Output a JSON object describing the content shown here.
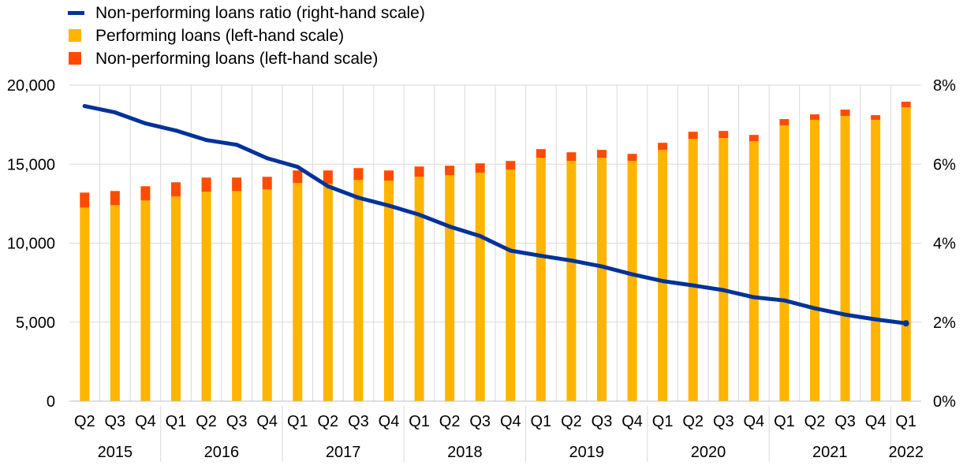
{
  "chart_data": {
    "type": "bar",
    "stacked": true,
    "legend_position": "top-left",
    "grid": {
      "vertical": true,
      "horizontal": true
    },
    "x_quarters": [
      "Q2",
      "Q3",
      "Q4",
      "Q1",
      "Q2",
      "Q3",
      "Q4",
      "Q1",
      "Q2",
      "Q3",
      "Q4",
      "Q1",
      "Q2",
      "Q3",
      "Q4",
      "Q1",
      "Q2",
      "Q3",
      "Q4",
      "Q1",
      "Q2",
      "Q3",
      "Q4",
      "Q1",
      "Q2",
      "Q3",
      "Q4",
      "Q1"
    ],
    "x_years": [
      {
        "label": "2015",
        "count": 3
      },
      {
        "label": "2016",
        "count": 4
      },
      {
        "label": "2017",
        "count": 4
      },
      {
        "label": "2018",
        "count": 4
      },
      {
        "label": "2019",
        "count": 4
      },
      {
        "label": "2020",
        "count": 4
      },
      {
        "label": "2021",
        "count": 4
      },
      {
        "label": "2022",
        "count": 1
      }
    ],
    "y_left": {
      "min": 0,
      "max": 20000,
      "ticks": [
        "0",
        "5,000",
        "10,000",
        "15,000",
        "20,000"
      ]
    },
    "y_right": {
      "min": 0,
      "max": 8,
      "ticks": [
        "0%",
        "2%",
        "4%",
        "6%",
        "8%"
      ]
    },
    "series": [
      {
        "name": "Performing loans (left-hand scale)",
        "axis": "left",
        "kind": "bar",
        "color": "#FFB400",
        "values": [
          12250,
          12400,
          12700,
          12950,
          13250,
          13300,
          13400,
          13800,
          13750,
          14000,
          13950,
          14200,
          14300,
          14450,
          14650,
          15400,
          15200,
          15400,
          15200,
          15900,
          16600,
          16650,
          16450,
          17450,
          17800,
          18050,
          17800,
          18600
        ]
      },
      {
        "name": "Non-performing loans (left-hand scale)",
        "axis": "left",
        "kind": "bar",
        "color": "#FF4B00",
        "values": [
          950,
          900,
          900,
          900,
          900,
          850,
          800,
          800,
          850,
          750,
          650,
          650,
          600,
          600,
          550,
          550,
          550,
          500,
          450,
          450,
          450,
          450,
          400,
          400,
          350,
          400,
          300,
          350
        ]
      },
      {
        "name": "Non-performing loans ratio (right-hand scale)",
        "axis": "right",
        "kind": "line",
        "color": "#003299",
        "values": [
          7.47,
          7.31,
          7.03,
          6.85,
          6.61,
          6.49,
          6.15,
          5.93,
          5.44,
          5.15,
          4.95,
          4.72,
          4.42,
          4.18,
          3.81,
          3.68,
          3.56,
          3.41,
          3.21,
          3.04,
          2.93,
          2.81,
          2.63,
          2.55,
          2.35,
          2.19,
          2.07,
          1.97
        ]
      }
    ]
  }
}
